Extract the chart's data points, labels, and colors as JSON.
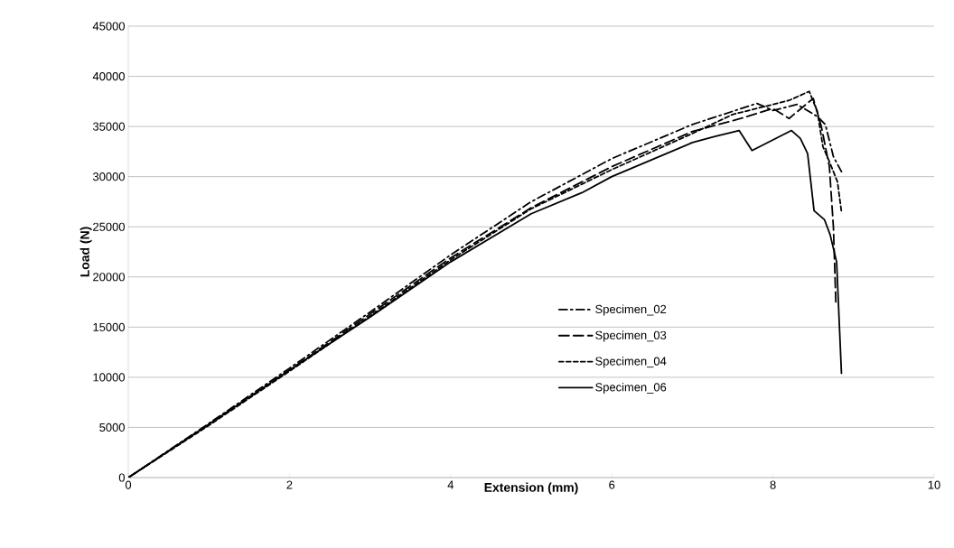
{
  "chart_data": {
    "type": "line",
    "xlabel": "Extension (mm)",
    "ylabel": "Load (N)",
    "xlim": [
      0,
      10
    ],
    "ylim": [
      0,
      45000
    ],
    "xticks": [
      0,
      2,
      4,
      6,
      8,
      10
    ],
    "yticks": [
      0,
      5000,
      10000,
      15000,
      20000,
      25000,
      30000,
      35000,
      40000,
      45000
    ],
    "grid": "y",
    "legend": "right",
    "marker": "none",
    "series": [
      {
        "name": "Specimen_02",
        "color": "#000000",
        "line_style": "dashdot",
        "x": [
          0,
          1,
          2,
          3,
          4,
          5,
          6,
          7,
          7.8,
          8.0,
          8.3,
          8.55,
          8.65,
          8.75,
          8.85
        ],
        "values": [
          0,
          5400,
          10900,
          16500,
          22200,
          27500,
          31800,
          35200,
          37300,
          36600,
          37200,
          36000,
          35200,
          32000,
          30500
        ]
      },
      {
        "name": "Specimen_03",
        "color": "#000000",
        "line_style": "loosely dashed",
        "x": [
          0,
          1,
          2,
          3,
          4,
          5,
          6,
          7,
          7.6,
          8.0,
          8.2,
          8.5,
          8.6,
          8.7,
          8.75,
          8.78
        ],
        "values": [
          0,
          5300,
          10700,
          16300,
          21900,
          26900,
          31000,
          34500,
          35800,
          36800,
          35800,
          37800,
          35000,
          31000,
          25000,
          17500
        ]
      },
      {
        "name": "Specimen_04",
        "color": "#000000",
        "line_style": "dashed",
        "x": [
          0,
          1,
          2,
          3,
          4,
          5,
          6,
          7,
          7.5,
          7.9,
          8.2,
          8.45,
          8.55,
          8.62,
          8.7,
          8.8,
          8.85
        ],
        "values": [
          0,
          5200,
          10600,
          16100,
          21700,
          26800,
          30700,
          34300,
          36200,
          37000,
          37600,
          38500,
          36500,
          33000,
          31500,
          29500,
          26500
        ]
      },
      {
        "name": "Specimen_06",
        "color": "#000000",
        "line_style": "solid",
        "x": [
          0,
          1,
          2,
          3,
          4,
          5,
          5.63,
          6,
          7,
          7.28,
          7.58,
          7.74,
          8.23,
          8.34,
          8.43,
          8.51,
          8.64,
          8.71,
          8.79,
          8.85
        ],
        "values": [
          0,
          5300,
          10700,
          16000,
          21500,
          26300,
          28400,
          30000,
          33400,
          34000,
          34600,
          32600,
          34600,
          33800,
          32300,
          26600,
          25700,
          24200,
          21500,
          10400
        ]
      }
    ]
  }
}
